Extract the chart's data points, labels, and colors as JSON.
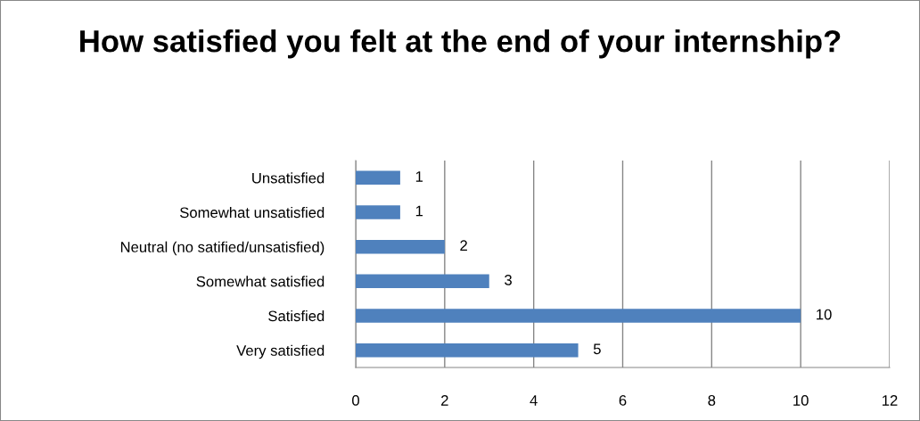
{
  "chart_data": {
    "type": "bar",
    "orientation": "horizontal",
    "title": "How satisfied you felt at the end of your internship?",
    "categories": [
      "Unsatisfied",
      "Somewhat unsatisfied",
      "Neutral (no satified/unsatisfied)",
      "Somewhat satisfied",
      "Satisfied",
      "Very satisfied"
    ],
    "values": [
      1,
      1,
      2,
      3,
      10,
      5
    ],
    "color": "#4f81bd",
    "xlim": [
      0,
      12
    ],
    "xticks": [
      0,
      2,
      4,
      6,
      8,
      10,
      12
    ],
    "grid": "x",
    "data_labels": true
  }
}
